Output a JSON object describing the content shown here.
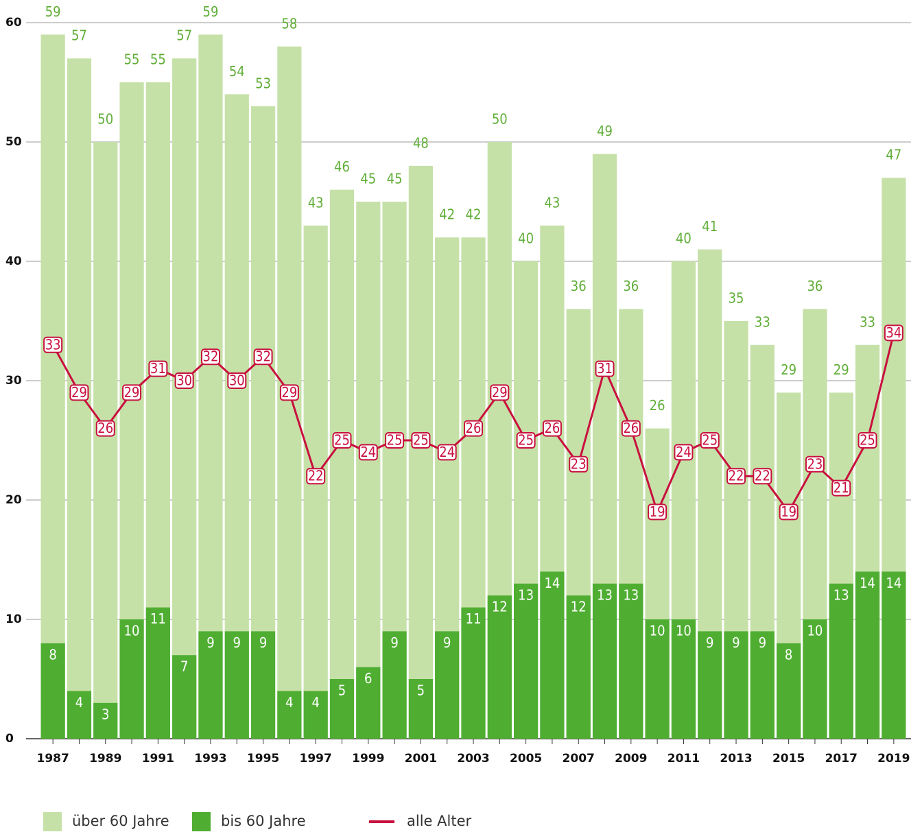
{
  "chart_data": {
    "type": "bar",
    "overlap": true,
    "categories": [
      "1987",
      null,
      "1989",
      null,
      "1991",
      null,
      "1993",
      null,
      "1995",
      null,
      "1997",
      null,
      "1999",
      null,
      "2001",
      null,
      "2003",
      null,
      "2005",
      null,
      "2007",
      null,
      "2009",
      null,
      "2011",
      null,
      "2013",
      null,
      "2015",
      null,
      "2017",
      null,
      "2019"
    ],
    "series": [
      {
        "name": "über 60 Jahre",
        "type": "bar",
        "color": "#c6e1a8",
        "label_color": "#5fae37",
        "values": [
          59,
          57,
          50,
          55,
          55,
          57,
          59,
          54,
          53,
          58,
          43,
          46,
          45,
          45,
          48,
          42,
          42,
          50,
          40,
          43,
          36,
          49,
          36,
          26,
          40,
          41,
          35,
          33,
          29,
          36,
          29,
          33,
          47
        ]
      },
      {
        "name": "bis 60 Jahre",
        "type": "bar",
        "color": "#4fae32",
        "label_color": "#ffffff",
        "values": [
          8,
          4,
          3,
          10,
          11,
          7,
          9,
          9,
          9,
          4,
          4,
          5,
          6,
          9,
          5,
          9,
          11,
          12,
          13,
          14,
          12,
          13,
          13,
          10,
          10,
          9,
          9,
          9,
          8,
          10,
          13,
          14,
          14
        ]
      },
      {
        "name": "alle Alter",
        "type": "line",
        "color": "#c8103e",
        "values": [
          33,
          29,
          26,
          29,
          31,
          30,
          32,
          30,
          32,
          29,
          22,
          25,
          24,
          25,
          25,
          24,
          26,
          29,
          25,
          26,
          23,
          31,
          26,
          19,
          24,
          25,
          22,
          22,
          19,
          23,
          21,
          25,
          34
        ]
      }
    ],
    "ylim": [
      0,
      60
    ],
    "yticks": [
      0,
      10,
      20,
      30,
      40,
      50,
      60
    ],
    "grid": true
  }
}
